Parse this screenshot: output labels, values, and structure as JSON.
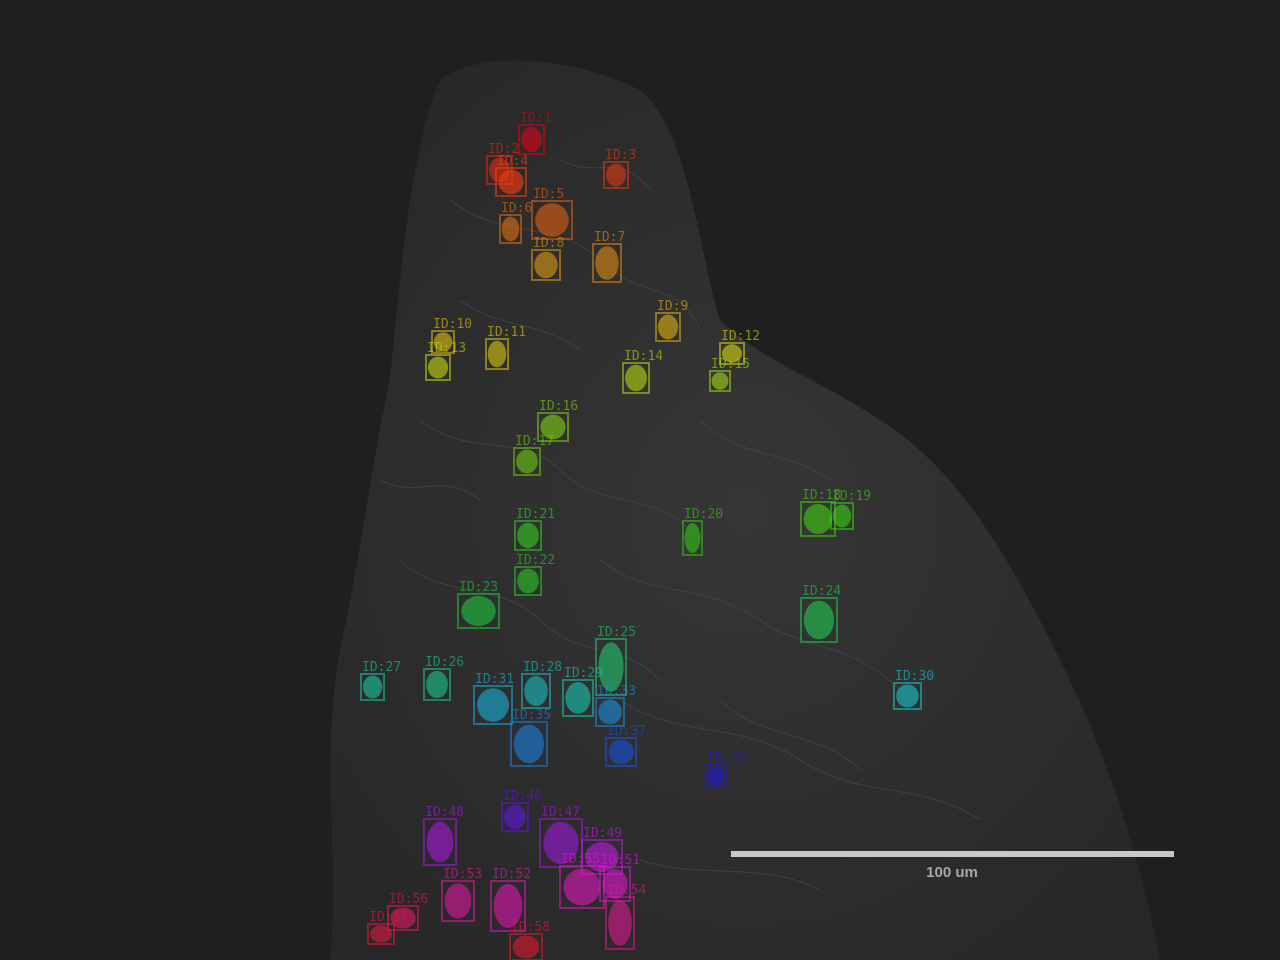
{
  "scale_bar": {
    "label": "100 um",
    "color": "#c8c8c8"
  },
  "cells": [
    {
      "id": "ID:1",
      "color": "#e00018"
    },
    {
      "id": "ID:2",
      "color": "#e02a10"
    },
    {
      "id": "ID:3",
      "color": "#e03a10"
    },
    {
      "id": "ID:4",
      "color": "#ff3c10"
    },
    {
      "id": "ID:5",
      "color": "#e06010"
    },
    {
      "id": "ID:6",
      "color": "#e07010"
    },
    {
      "id": "ID:7",
      "color": "#e08a10"
    },
    {
      "id": "ID:8",
      "color": "#e09a10"
    },
    {
      "id": "ID:9",
      "color": "#e0b010"
    },
    {
      "id": "ID:10",
      "color": "#e0c010"
    },
    {
      "id": "ID:11",
      "color": "#d8c810"
    },
    {
      "id": "ID:12",
      "color": "#d8d810"
    },
    {
      "id": "ID:13",
      "color": "#c8d810"
    },
    {
      "id": "ID:14",
      "color": "#b0d810"
    },
    {
      "id": "ID:15",
      "color": "#a0d810"
    },
    {
      "id": "ID:16",
      "color": "#80d010"
    },
    {
      "id": "ID:17",
      "color": "#70c810"
    },
    {
      "id": "ID:18",
      "color": "#40d010"
    },
    {
      "id": "ID:19",
      "color": "#38d010"
    },
    {
      "id": "ID:20",
      "color": "#30c810"
    },
    {
      "id": "ID:21",
      "color": "#30d020"
    },
    {
      "id": "ID:22",
      "color": "#28c828"
    },
    {
      "id": "ID:23",
      "color": "#20c840"
    },
    {
      "id": "ID:24",
      "color": "#20c850"
    },
    {
      "id": "ID:25",
      "color": "#20c870"
    },
    {
      "id": "ID:26",
      "color": "#18c890"
    },
    {
      "id": "ID:27",
      "color": "#18c8a0"
    },
    {
      "id": "ID:28",
      "color": "#18c0c0"
    },
    {
      "id": "ID:29",
      "color": "#18c8b0"
    },
    {
      "id": "ID:30",
      "color": "#18c8d0"
    },
    {
      "id": "ID:31",
      "color": "#18b0d8"
    },
    {
      "id": "ID:33",
      "color": "#1890e0"
    },
    {
      "id": "ID:35",
      "color": "#1880e0"
    },
    {
      "id": "ID:37",
      "color": "#1850e0"
    },
    {
      "id": "ID:42",
      "color": "#2018d8"
    },
    {
      "id": "ID:46",
      "color": "#6018e0"
    },
    {
      "id": "ID:47",
      "color": "#a018e0"
    },
    {
      "id": "ID:48",
      "color": "#a818e0"
    },
    {
      "id": "ID:49",
      "color": "#c018e0"
    },
    {
      "id": "ID:51",
      "color": "#d818d0"
    },
    {
      "id": "ID:52",
      "color": "#e018b0"
    },
    {
      "id": "ID:53",
      "color": "#e018a0"
    },
    {
      "id": "ID:54",
      "color": "#e01890"
    },
    {
      "id": "ID:55",
      "color": "#e018c0"
    },
    {
      "id": "ID:56",
      "color": "#e01860"
    },
    {
      "id": "ID:57",
      "color": "#e01840"
    },
    {
      "id": "ID:58",
      "color": "#e01830"
    }
  ]
}
